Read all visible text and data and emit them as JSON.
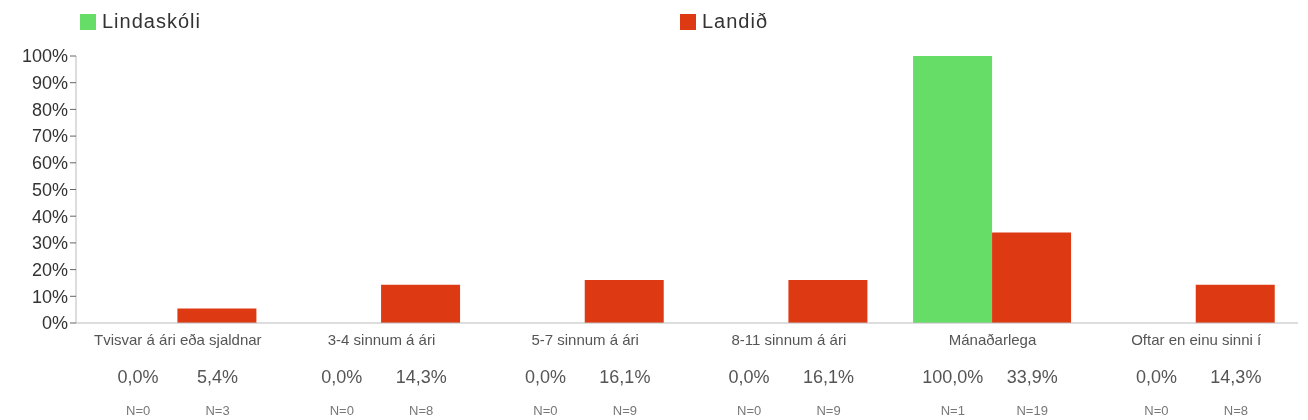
{
  "chart_data": {
    "type": "bar",
    "categories": [
      "Tvisvar á ári eða sjaldnar",
      "3-4 sinnum á ári",
      "5-7 sinnum á ári",
      "8-11 sinnum á ári",
      "Mánaðarlega",
      "Oftar en einu sinni í"
    ],
    "series": [
      {
        "name": "Lindaskóli",
        "color": "#66dd66",
        "values": [
          0,
          0,
          0,
          0,
          100,
          0
        ],
        "value_labels": [
          "0,0%",
          "0,0%",
          "0,0%",
          "0,0%",
          "100,0%",
          "0,0%"
        ]
      },
      {
        "name": "Landið",
        "color": "#dd3a14",
        "values": [
          5.4,
          14.3,
          16.1,
          16.1,
          33.9,
          14.3
        ],
        "value_labels": [
          "5,4%",
          "14,3%",
          "16,1%",
          "16,1%",
          "33,9%",
          "14,3%"
        ]
      }
    ],
    "annotations": [
      "N=0",
      "N=3",
      "N=0",
      "N=8",
      "N=0",
      "N=9",
      "N=0",
      "N=9",
      "N=1",
      "N=19",
      "N=0",
      "N=8"
    ],
    "ylim": [
      0,
      100
    ],
    "yticks": [
      {
        "value": 0,
        "label": "0%"
      },
      {
        "value": 10,
        "label": "10%"
      },
      {
        "value": 20,
        "label": "20%"
      },
      {
        "value": 30,
        "label": "30%"
      },
      {
        "value": 40,
        "label": "40%"
      },
      {
        "value": 50,
        "label": "50%"
      },
      {
        "value": 60,
        "label": "60%"
      },
      {
        "value": 70,
        "label": "70%"
      },
      {
        "value": 80,
        "label": "80%"
      },
      {
        "value": 90,
        "label": "90%"
      },
      {
        "value": 100,
        "label": "100%"
      }
    ],
    "grid": false,
    "legend": "top"
  }
}
